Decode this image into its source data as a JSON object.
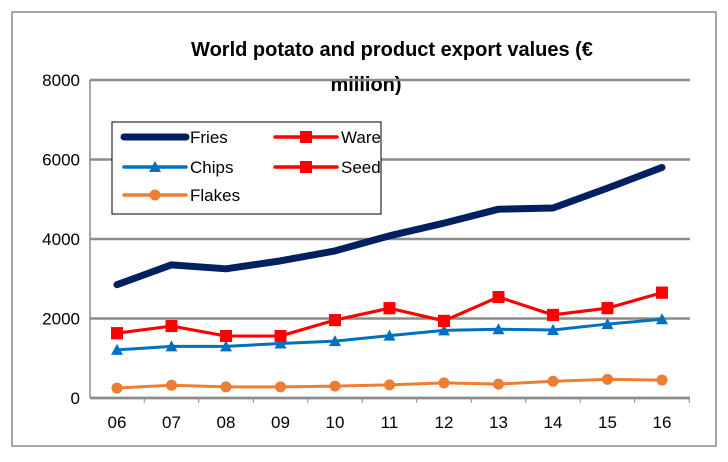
{
  "chart_data": {
    "type": "line",
    "title_line1": "World potato and product export values (€",
    "title_line2": "million)",
    "xlabel": "",
    "ylabel": "",
    "categories": [
      "06",
      "07",
      "08",
      "09",
      "10",
      "11",
      "12",
      "13",
      "14",
      "15",
      "16"
    ],
    "ylim": [
      0,
      8000
    ],
    "yticks": [
      "0",
      "2000",
      "4000",
      "6000",
      "8000"
    ],
    "grid": true,
    "legend_position": "top-left",
    "series": [
      {
        "name": "Fries",
        "color": "#002060",
        "marker": "none",
        "values": [
          2850,
          3350,
          3250,
          3450,
          3700,
          4080,
          4400,
          4750,
          4780,
          5280,
          5800
        ]
      },
      {
        "name": "Ware",
        "color": "#ff0000",
        "marker": "square",
        "values": [
          1630,
          1810,
          1560,
          1560,
          1960,
          2260,
          1940,
          2540,
          2090,
          2260,
          2650
        ]
      },
      {
        "name": "Chips",
        "color": "#0070c0",
        "marker": "triangle",
        "values": [
          1210,
          1300,
          1300,
          1370,
          1430,
          1570,
          1700,
          1730,
          1710,
          1860,
          1980
        ]
      },
      {
        "name": "Seed",
        "color": "#ff0000",
        "marker": "square",
        "values": [
          1630,
          1810,
          1560,
          1560,
          1960,
          2260,
          1940,
          2540,
          2090,
          2260,
          2650
        ]
      },
      {
        "name": "Flakes",
        "color": "#ed7d31",
        "marker": "circle",
        "values": [
          250,
          320,
          280,
          280,
          300,
          330,
          380,
          350,
          420,
          470,
          450
        ]
      }
    ]
  }
}
